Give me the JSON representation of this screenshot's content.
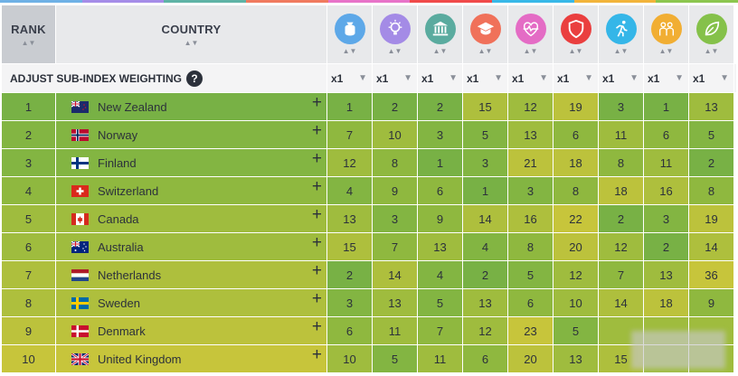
{
  "colors": {
    "top_bar": [
      "#6fb1e6",
      "#a58de8",
      "#5fb3a6",
      "#f07a5f",
      "#e873c9",
      "#f04a4a",
      "#38b8e8",
      "#f2b43b",
      "#8cc64f"
    ],
    "scale": {
      "1": "#78b145",
      "2": "#83b542",
      "3": "#8fb83f",
      "4": "#9fbc3e",
      "5": "#aebf3d",
      "6": "#bcc23c",
      "7": "#c7c53b"
    }
  },
  "header": {
    "rank_label": "RANK",
    "country_label": "COUNTRY",
    "sort_glyph": "▲▼",
    "subindex_icons": [
      {
        "icon": "money-bag-icon",
        "color": "#5da8e8"
      },
      {
        "icon": "lightbulb-icon",
        "color": "#a48be6"
      },
      {
        "icon": "government-building-icon",
        "color": "#5aab9f"
      },
      {
        "icon": "graduation-cap-icon",
        "color": "#f0715a"
      },
      {
        "icon": "heart-pulse-icon",
        "color": "#e46cc5"
      },
      {
        "icon": "shield-icon",
        "color": "#ea3f3f"
      },
      {
        "icon": "running-person-icon",
        "color": "#35b6e8"
      },
      {
        "icon": "people-icon",
        "color": "#f1ae33"
      },
      {
        "icon": "leaf-icon",
        "color": "#85c14a"
      }
    ]
  },
  "adjust": {
    "label": "ADJUST SUB-INDEX WEIGHTING",
    "help": "?",
    "weights": [
      "x1",
      "x1",
      "x1",
      "x1",
      "x1",
      "x1",
      "x1",
      "x1",
      "x1"
    ],
    "dropdown_glyph": "▼"
  },
  "plus_glyph": "+",
  "rows": [
    {
      "rank": "1",
      "country": "New Zealand",
      "flag": "nz",
      "values": [
        "1",
        "2",
        "2",
        "15",
        "12",
        "19",
        "3",
        "1",
        "13"
      ],
      "levels": [
        1,
        1,
        1,
        5,
        4,
        6,
        1,
        1,
        4
      ]
    },
    {
      "rank": "2",
      "country": "Norway",
      "flag": "no",
      "values": [
        "7",
        "10",
        "3",
        "5",
        "13",
        "6",
        "11",
        "6",
        "5"
      ],
      "levels": [
        3,
        4,
        2,
        2,
        4,
        3,
        4,
        3,
        2
      ]
    },
    {
      "rank": "3",
      "country": "Finland",
      "flag": "fi",
      "values": [
        "12",
        "8",
        "1",
        "3",
        "21",
        "18",
        "8",
        "11",
        "2"
      ],
      "levels": [
        4,
        3,
        1,
        2,
        6,
        6,
        3,
        4,
        1
      ]
    },
    {
      "rank": "4",
      "country": "Switzerland",
      "flag": "ch",
      "values": [
        "4",
        "9",
        "6",
        "1",
        "3",
        "8",
        "18",
        "16",
        "8"
      ],
      "levels": [
        2,
        3,
        3,
        1,
        2,
        3,
        6,
        5,
        3
      ]
    },
    {
      "rank": "5",
      "country": "Canada",
      "flag": "ca",
      "values": [
        "13",
        "3",
        "9",
        "14",
        "16",
        "22",
        "2",
        "3",
        "19"
      ],
      "levels": [
        4,
        2,
        3,
        5,
        5,
        7,
        1,
        2,
        6
      ]
    },
    {
      "rank": "6",
      "country": "Australia",
      "flag": "au",
      "values": [
        "15",
        "7",
        "13",
        "4",
        "8",
        "20",
        "12",
        "2",
        "14"
      ],
      "levels": [
        5,
        3,
        4,
        2,
        3,
        6,
        4,
        1,
        5
      ]
    },
    {
      "rank": "7",
      "country": "Netherlands",
      "flag": "nl",
      "values": [
        "2",
        "14",
        "4",
        "2",
        "5",
        "12",
        "7",
        "13",
        "36"
      ],
      "levels": [
        1,
        5,
        2,
        1,
        2,
        4,
        3,
        4,
        7
      ]
    },
    {
      "rank": "8",
      "country": "Sweden",
      "flag": "se",
      "values": [
        "3",
        "13",
        "5",
        "13",
        "6",
        "10",
        "14",
        "18",
        "9"
      ],
      "levels": [
        2,
        4,
        2,
        4,
        3,
        4,
        5,
        6,
        3
      ]
    },
    {
      "rank": "9",
      "country": "Denmark",
      "flag": "dk",
      "values": [
        "6",
        "11",
        "7",
        "12",
        "23",
        "5",
        "",
        "",
        ""
      ],
      "levels": [
        3,
        4,
        3,
        4,
        7,
        2,
        4,
        4,
        4
      ]
    },
    {
      "rank": "10",
      "country": "United Kingdom",
      "flag": "gb",
      "values": [
        "10",
        "5",
        "11",
        "6",
        "20",
        "13",
        "15",
        "",
        ""
      ],
      "levels": [
        4,
        2,
        4,
        3,
        6,
        4,
        5,
        4,
        4
      ]
    }
  ]
}
